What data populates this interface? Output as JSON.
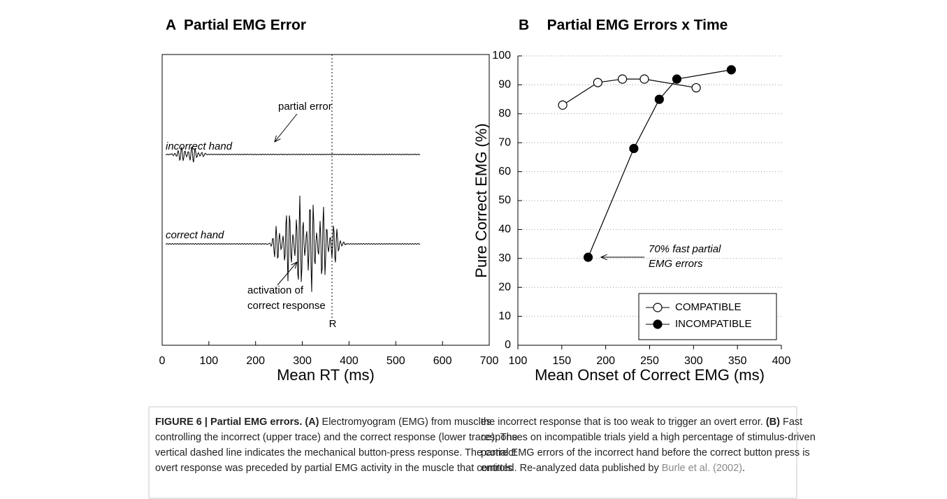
{
  "chart_data": [
    {
      "type": "trace",
      "panel_label": "A",
      "title": "Partial EMG Error",
      "x_label": "Mean RT (ms)",
      "xlim": [
        0,
        700
      ],
      "xticks": [
        0,
        100,
        200,
        300,
        400,
        500,
        600,
        700
      ],
      "annotations": {
        "partial_error": "partial error",
        "incorrect_hand": "incorrect hand",
        "correct_hand": "correct hand",
        "activation": [
          "activation of",
          "correct response"
        ],
        "response_marker": "R"
      }
    },
    {
      "type": "line",
      "panel_label": "B",
      "title": "Partial EMG Errors x Time",
      "x_label": "Mean Onset of Correct EMG (ms)",
      "y_label": "Pure Correct EMG (%)",
      "xlim": [
        100,
        400
      ],
      "xticks": [
        100,
        150,
        200,
        250,
        300,
        350,
        400
      ],
      "ylim": [
        0,
        100
      ],
      "yticks": [
        0,
        10,
        20,
        30,
        40,
        50,
        60,
        70,
        80,
        90,
        100
      ],
      "grid": true,
      "legend_position": "lower right",
      "series": [
        {
          "name": "COMPATIBLE",
          "marker": "open",
          "color": "#000000",
          "x": [
            151,
            191,
            219,
            244,
            303
          ],
          "values": [
            83,
            90.8,
            92,
            92,
            89
          ]
        },
        {
          "name": "INCOMPATIBLE",
          "marker": "filled",
          "color": "#000000",
          "x": [
            180,
            232,
            261,
            281,
            343
          ],
          "values": [
            30.4,
            68,
            85,
            92,
            95.2
          ]
        }
      ],
      "annotation": [
        "70% fast partial",
        "EMG errors"
      ]
    }
  ],
  "caption": {
    "columns": [
      [
        [
          {
            "text": "FIGURE 6 | Partial EMG errors. (A)",
            "bold": true
          },
          {
            "text": " Electromyogram (EMG) from muscles"
          }
        ],
        [
          {
            "text": "controlling the incorrect (upper trace) and the correct response (lower trace). The"
          }
        ],
        [
          {
            "text": "vertical dashed line indicates the mechanical button-press response. The correct"
          }
        ],
        [
          {
            "text": "overt response was preceded by partial EMG activity in the muscle that controls"
          }
        ]
      ],
      [
        [
          {
            "text": "the incorrect response that is too weak to trigger an overt error. "
          },
          {
            "text": "(B)",
            "bold": true
          },
          {
            "text": " Fast"
          }
        ],
        [
          {
            "text": "responses on incompatible trials yield a high percentage of stimulus-driven"
          }
        ],
        [
          {
            "text": "partial EMG errors of the incorrect hand before the correct button press is"
          }
        ],
        [
          {
            "text": "emitted. Re-analyzed data published by "
          },
          {
            "text": "Burle et al. (2002)",
            "link": true
          },
          {
            "text": "."
          }
        ]
      ]
    ]
  }
}
